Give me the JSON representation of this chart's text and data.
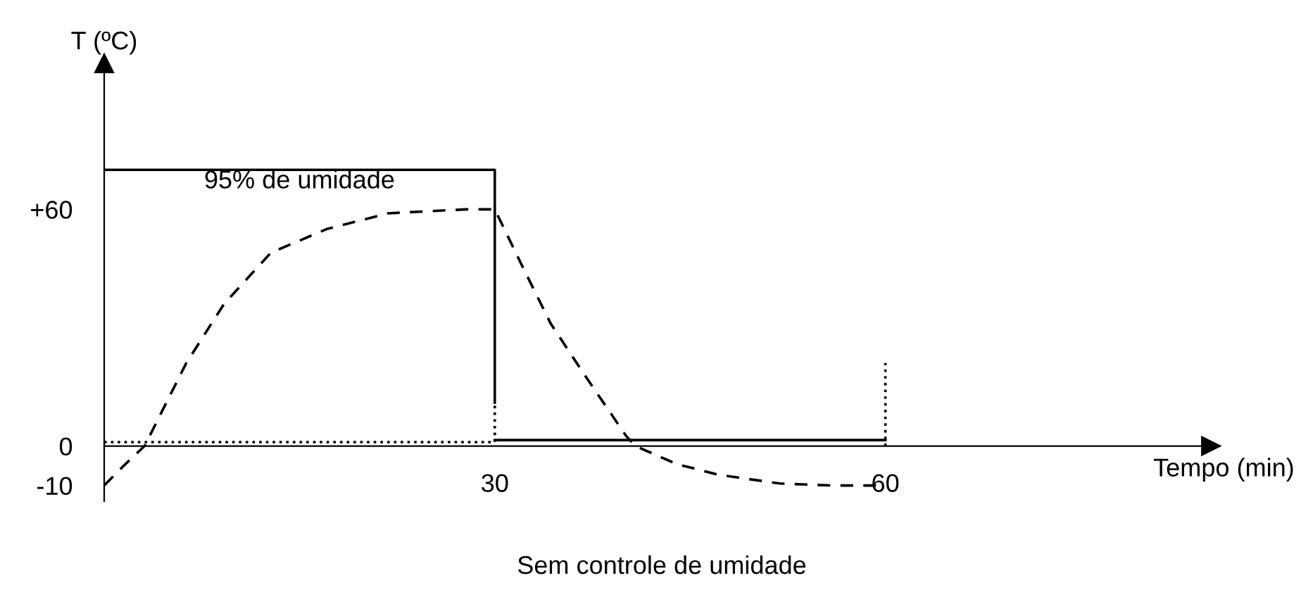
{
  "chart_data": {
    "type": "line",
    "xlabel": "Tempo (min)",
    "ylabel": "T (ºC)",
    "xlim": [
      0,
      85
    ],
    "ylim": [
      -14,
      97
    ],
    "xticks": [
      30,
      60
    ],
    "yticks": [
      -10,
      0,
      {
        "value": 60,
        "label": "+60"
      }
    ],
    "grid": false,
    "legend": false,
    "marker": "none",
    "series": [
      {
        "color": "#000000",
        "line_style": "dashed",
        "x": [
          0,
          1.5,
          3.1,
          6.3,
          9.2,
          12.8,
          17.1,
          21.8,
          27.8,
          30,
          32.2,
          34.3,
          36.9,
          40.1,
          40.8,
          44,
          47.2,
          51.9,
          55.8,
          60
        ],
        "values": [
          -10,
          -5,
          0,
          21,
          36,
          49,
          55,
          59,
          60,
          60,
          45,
          31,
          18,
          2.5,
          0,
          -4.6,
          -7.3,
          -9.5,
          -10,
          -10
        ]
      },
      {
        "color": "#000000",
        "line_style": "solid",
        "x": [
          0,
          30,
          30
        ],
        "values": [
          70,
          70,
          11
        ]
      },
      {
        "color": "#000000",
        "line_style": "solid",
        "x": [
          30,
          60
        ],
        "values": [
          1.5,
          1.5
        ]
      },
      {
        "color": "#000000",
        "line_style": "dotted",
        "x": [
          0,
          30,
          30
        ],
        "values": [
          1,
          1,
          11
        ]
      },
      {
        "color": "#000000",
        "line_style": "dotted",
        "x": [
          60,
          60
        ],
        "values": [
          0,
          21
        ]
      }
    ],
    "annotations": [
      {
        "text": "95% de umidade",
        "x": 15,
        "y": 70
      },
      "Sem controle de umidade"
    ]
  }
}
